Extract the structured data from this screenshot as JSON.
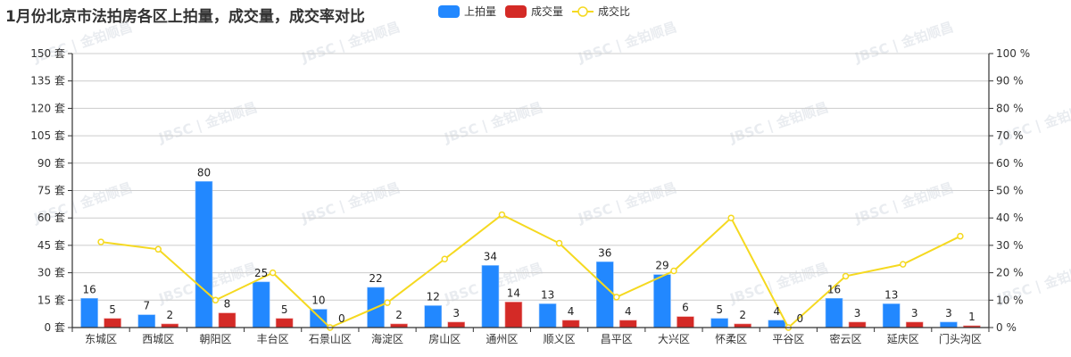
{
  "title": "1月份北京市法拍房各区上拍量，成交量，成交率对比",
  "legend": [
    {
      "label": "上拍量",
      "color": "#2288ff",
      "kind": "bar"
    },
    {
      "label": "成交量",
      "color": "#d42a26",
      "kind": "bar"
    },
    {
      "label": "成交比",
      "color": "#f5d920",
      "kind": "line"
    }
  ],
  "watermark": "JBSC | 金铂顺昌",
  "chart_data": {
    "type": "bar",
    "title": "1月份北京市法拍房各区上拍量，成交量，成交率对比",
    "xlabel": "",
    "ylabel": "套",
    "y2label": "%",
    "ylim": [
      0,
      150
    ],
    "y2lim": [
      0,
      100
    ],
    "yticks": [
      "0 套",
      "15 套",
      "30 套",
      "45 套",
      "60 套",
      "75 套",
      "90 套",
      "105 套",
      "120 套",
      "135 套",
      "150 套"
    ],
    "y2ticks": [
      "0 %",
      "10 %",
      "20 %",
      "30 %",
      "40 %",
      "50 %",
      "60 %",
      "70 %",
      "80 %",
      "90 %",
      "100 %"
    ],
    "grid": true,
    "legend_position": "top",
    "categories": [
      "东城区",
      "西城区",
      "朝阳区",
      "丰台区",
      "石景山区",
      "海淀区",
      "房山区",
      "通州区",
      "顺义区",
      "昌平区",
      "大兴区",
      "怀柔区",
      "平谷区",
      "密云区",
      "延庆区",
      "门头沟区"
    ],
    "series": [
      {
        "name": "上拍量",
        "type": "bar",
        "axis": "left",
        "color": "#2288ff",
        "values": [
          16,
          7,
          80,
          25,
          10,
          22,
          12,
          34,
          13,
          36,
          29,
          5,
          4,
          16,
          13,
          3
        ]
      },
      {
        "name": "成交量",
        "type": "bar",
        "axis": "left",
        "color": "#d42a26",
        "values": [
          5,
          2,
          8,
          5,
          0,
          2,
          3,
          14,
          4,
          4,
          6,
          2,
          0,
          3,
          3,
          1
        ]
      },
      {
        "name": "成交比",
        "type": "line",
        "axis": "right",
        "color": "#f5d920",
        "values": [
          31.25,
          28.57,
          10,
          20,
          0,
          9.09,
          25,
          41.18,
          30.77,
          11.11,
          20.69,
          40,
          0,
          18.75,
          23.08,
          33.33
        ]
      }
    ]
  }
}
